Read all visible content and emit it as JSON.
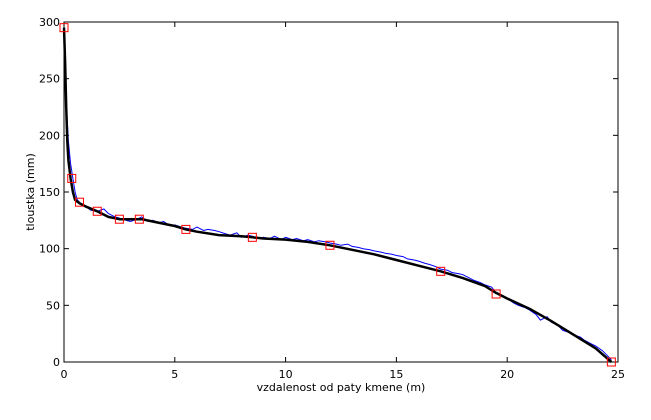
{
  "chart_data": {
    "type": "line",
    "xlabel": "vzdalenost od paty kmene (m)",
    "ylabel": "tloustka (mm)",
    "xlim": [
      0,
      25
    ],
    "ylim": [
      0,
      300
    ],
    "xticks": [
      0,
      5,
      10,
      15,
      20,
      25
    ],
    "yticks": [
      0,
      50,
      100,
      150,
      200,
      250,
      300
    ],
    "xtick_labels": [
      "0",
      "5",
      "10",
      "15",
      "20",
      "25"
    ],
    "ytick_labels": [
      "0",
      "50",
      "100",
      "150",
      "200",
      "250",
      "300"
    ],
    "grid": false,
    "legend": "none",
    "colors": {
      "measured": "#0000ff",
      "fitted": "#000000",
      "markers": "#ff0000"
    },
    "series": [
      {
        "style": "thin blue line",
        "x": [
          0.0,
          0.05,
          0.1,
          0.2,
          0.3,
          0.4,
          0.5,
          0.6,
          0.7,
          0.8,
          1.0,
          1.2,
          1.5,
          1.8,
          2.0,
          2.3,
          2.5,
          2.8,
          3.0,
          3.3,
          3.5,
          3.8,
          4.0,
          4.3,
          4.5,
          4.8,
          5.0,
          5.3,
          5.5,
          5.8,
          6.0,
          6.3,
          6.5,
          6.8,
          7.0,
          7.3,
          7.5,
          7.8,
          8.0,
          8.3,
          8.5,
          8.8,
          9.0,
          9.3,
          9.5,
          9.8,
          10.0,
          10.3,
          10.5,
          10.8,
          11.0,
          11.3,
          11.5,
          11.8,
          12.0,
          12.3,
          12.5,
          12.8,
          13.0,
          13.3,
          13.5,
          13.8,
          14.0,
          14.3,
          14.5,
          14.8,
          15.0,
          15.3,
          15.5,
          15.8,
          16.0,
          16.3,
          16.5,
          16.8,
          17.0,
          17.3,
          17.5,
          17.8,
          18.0,
          18.3,
          18.5,
          18.8,
          19.0,
          19.3,
          19.5,
          19.8,
          20.0,
          20.3,
          20.5,
          20.8,
          21.0,
          21.3,
          21.5,
          21.8,
          22.0,
          22.3,
          22.5,
          22.8,
          23.0,
          23.3,
          23.5,
          23.8,
          24.0,
          24.3,
          24.5,
          24.7
        ],
        "y": [
          295,
          270,
          230,
          195,
          175,
          162,
          150,
          143,
          141,
          139,
          137,
          134,
          133,
          135,
          131,
          128,
          127,
          125,
          124,
          126,
          128,
          124,
          125,
          123,
          124,
          120,
          121,
          119,
          118,
          117,
          119,
          116,
          117,
          116,
          115,
          113,
          112,
          114,
          110,
          112,
          111,
          109,
          110,
          109,
          111,
          108,
          110,
          108,
          109,
          107,
          108,
          106,
          107,
          106,
          105,
          104,
          103,
          104,
          102,
          101,
          100,
          99,
          98,
          97,
          96,
          95,
          94,
          93,
          91,
          90,
          89,
          87,
          86,
          84,
          82,
          81,
          79,
          78,
          77,
          74,
          72,
          70,
          68,
          66,
          61,
          58,
          56,
          52,
          50,
          48,
          46,
          42,
          37,
          40,
          35,
          32,
          28,
          26,
          24,
          22,
          19,
          16,
          14,
          10,
          6,
          2
        ]
      },
      {
        "style": "thick black line",
        "x": [
          0.0,
          0.05,
          0.1,
          0.15,
          0.2,
          0.3,
          0.4,
          0.5,
          0.7,
          1.0,
          1.5,
          2.0,
          2.5,
          3.0,
          3.5,
          4.0,
          5.0,
          5.5,
          6.0,
          7.0,
          8.0,
          8.5,
          9.0,
          10.0,
          11.0,
          12.0,
          13.0,
          14.0,
          15.0,
          16.0,
          17.0,
          18.0,
          19.0,
          19.5,
          20.0,
          21.0,
          22.0,
          23.0,
          24.0,
          24.7
        ],
        "y": [
          295,
          265,
          225,
          195,
          178,
          162,
          150,
          143,
          140,
          137,
          133,
          128,
          126,
          126,
          126,
          124,
          120,
          117,
          115,
          112,
          111,
          110,
          109,
          108,
          106,
          103,
          99,
          95,
          90,
          85,
          80,
          74,
          67,
          61,
          56,
          47,
          36,
          24,
          12,
          0
        ]
      },
      {
        "style": "red square markers",
        "x": [
          0.0,
          0.35,
          0.7,
          1.5,
          2.5,
          3.4,
          5.5,
          8.5,
          12.0,
          17.0,
          19.5,
          24.7
        ],
        "y": [
          295,
          162,
          141,
          133,
          126,
          126,
          117,
          110,
          103,
          80,
          60,
          0
        ]
      }
    ]
  }
}
